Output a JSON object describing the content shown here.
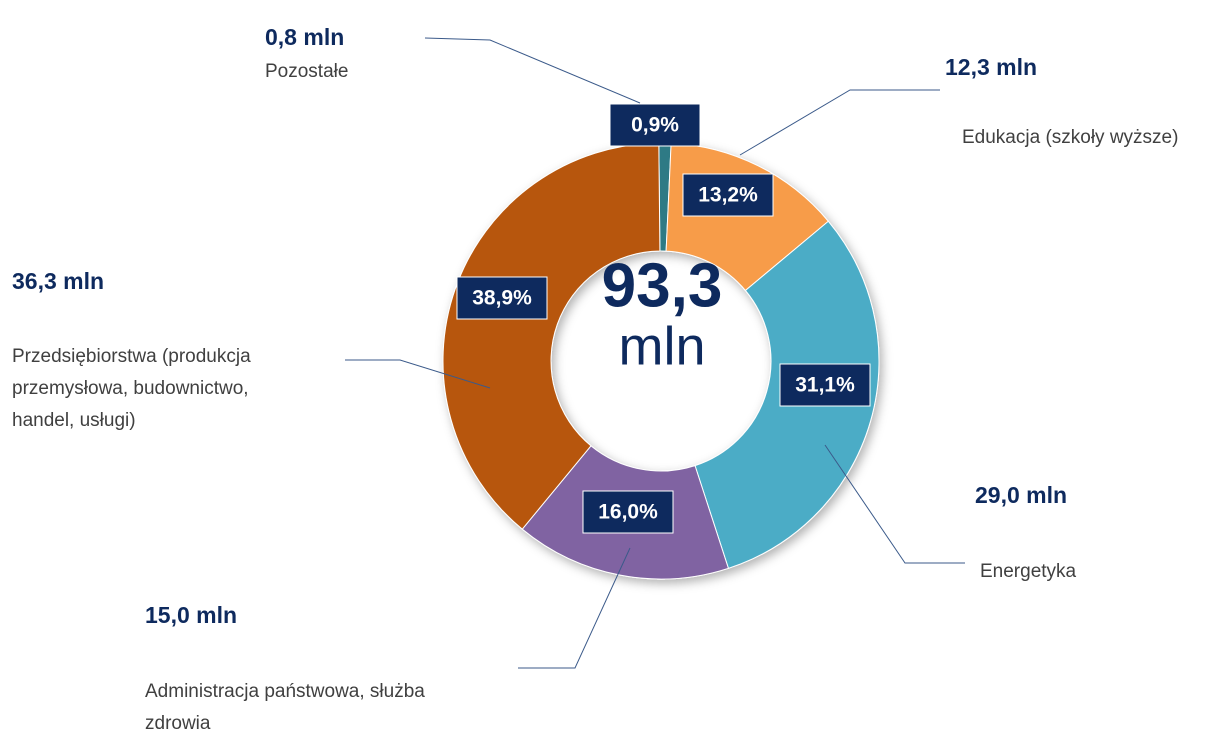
{
  "chart_data": {
    "type": "donut",
    "categories": [
      "Pozostałe",
      "Edukacja (szkoły wyższe)",
      "Energetyka",
      "Administracja państwowa, służba zdrowia",
      "Przedsiębiorstwa (produkcja przemysłowa, budownictwo, handel, usługi)"
    ],
    "values": [
      0.9,
      13.2,
      31.1,
      16.0,
      38.9
    ],
    "value_labels": [
      "0,9%",
      "13,2%",
      "31,1%",
      "16,0%",
      "38,9%"
    ],
    "amount_labels": [
      "0,8 mln",
      "12,3 mln",
      "29,0 mln",
      "15,0 mln",
      "36,3 mln"
    ],
    "colors": [
      "#2e7a85",
      "#f79c4a",
      "#4bacc6",
      "#8064a2",
      "#b7560a"
    ],
    "total_label": "93,3",
    "total_unit": "mln"
  }
}
